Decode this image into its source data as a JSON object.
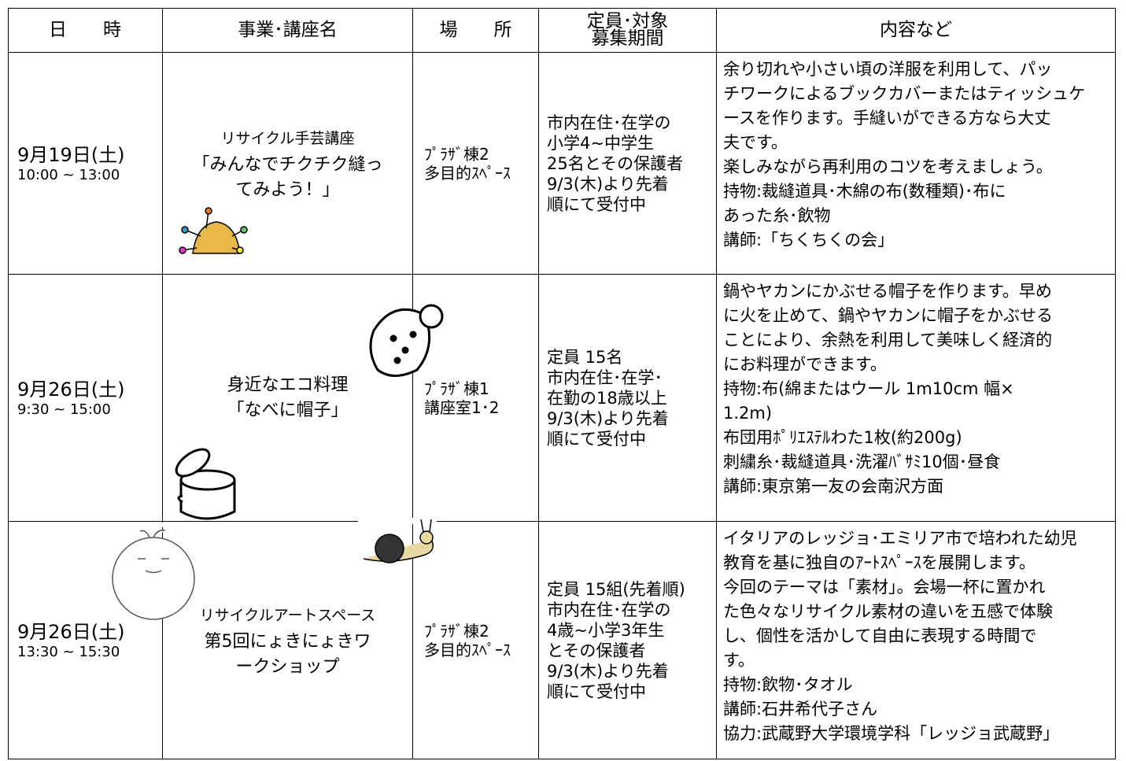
{
  "table": {
    "header": [
      [
        "日　　時"
      ],
      [
        "事業･講座名"
      ],
      [
        "場　　所"
      ],
      [
        "定員･対象",
        "募集期間"
      ],
      [
        "内容など"
      ]
    ],
    "rows": [
      {
        "date": [
          "9月19日(土)",
          "10:00 ~ 13:00"
        ],
        "event": [
          "リサイクル手芸講座",
          "「みんなでチクチク縫っ",
          "てみよう！」"
        ],
        "place": [
          "ﾌﾟﾗｻﾞ棟2",
          "多目的ｽﾍﾟｰｽ"
        ],
        "target": [
          "市内在住･在学の",
          "小学4~中学生",
          "25名とその保護者",
          "9/3(木)より先着",
          "順にて受付中"
        ],
        "content": [
          "余り切れや小さい頃の洋服を利用して、パッ",
          "チワークによるブックカバーまたはティッシュケ",
          "ースを作ります。手縫いができる方なら大丈",
          "夫です。",
          "楽しみながら再利用のコツを考えましょう。",
          "持物:裁縫道具･木綿の布(数種類)･布に",
          "あった糸･飲物",
          "講師:「ちくちくの会」"
        ]
      },
      {
        "date": [
          "9月26日(土)",
          "9:30 ~ 15:00"
        ],
        "event": [
          "身近なエコ料理",
          "「なべに帽子」"
        ],
        "place": [
          "ﾌﾟﾗｻﾞ棟1",
          "講座室1･2"
        ],
        "target": [
          "定員 15名",
          "市内在住･在学･",
          "在勤の18歳以上",
          "9/3(木)より先着",
          "順にて受付中"
        ],
        "content": [
          "鍋やヤカンにかぶせる帽子を作ります。早め",
          "に火を止めて、鍋やヤカンに帽子をかぶせる",
          "ことにより、余熱を利用して美味しく経済的",
          "にお料理ができます。",
          "持物:布(綿またはウール 1m10cm 幅×",
          "1.2m)",
          "布団用ﾎﾟﾘｴｽﾃﾙわた1枚(約200g)",
          "刺繍糸･裁縫道具･洗濯ﾊﾞｻﾐ10個･昼食",
          "講師:東京第一友の会南沢方面"
        ]
      },
      {
        "date": [
          "9月26日(土)",
          "13:30 ~ 15:30"
        ],
        "event": [
          "リサイクルアートスペース",
          "第5回にょきにょきワ",
          "ークショップ"
        ],
        "place": [
          "ﾌﾟﾗｻﾞ棟2",
          "多目的ｽﾍﾟｰｽ"
        ],
        "target": [
          "定員 15組(先着順)",
          "市内在住･在学の",
          "4歳~小学3年生",
          "とその保護者",
          "9/3(木)より先着",
          "順にて受付中"
        ],
        "content": [
          "イタリアのレッジョ･エミリア市で培われた幼児",
          "教育を基に独自のｱｰﾄｽﾍﾟｰｽを展開します。",
          "今回のテーマは「素材」。会場一杯に置かれ",
          "た色々なリサイクル素材の違いを五感で体験",
          "し、個性を活かして自由に表現する時間で",
          "す。",
          "持物:飲物･タオル",
          "講師:石井希代子さん",
          "協力:武蔵野大学環境学科「レッジョ武蔵野」"
        ]
      }
    ]
  }
}
